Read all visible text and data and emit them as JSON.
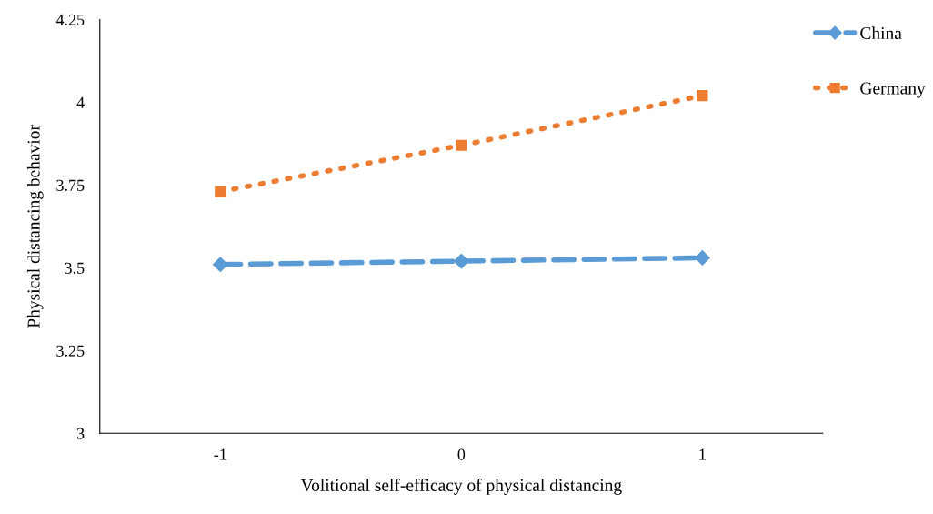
{
  "chart_data": {
    "type": "line",
    "xlabel": "Volitional self-efficacy of physical distancing",
    "ylabel": "Physical distancing behavior",
    "x": [
      -1,
      0,
      1
    ],
    "series": [
      {
        "name": "China",
        "color": "#5b9bd5",
        "values": [
          3.51,
          3.52,
          3.53
        ],
        "marker": "diamond",
        "line_style": "dashed"
      },
      {
        "name": "Germany",
        "color": "#ed7d31",
        "values": [
          3.73,
          3.87,
          4.02
        ],
        "marker": "square",
        "line_style": "dotted"
      }
    ],
    "xlim": [
      -1.5,
      1.5
    ],
    "xticks": [
      -1,
      0,
      1
    ],
    "ylim": [
      3,
      4.25
    ],
    "yticks": [
      3,
      3.25,
      3.5,
      3.75,
      4,
      4.25
    ],
    "grid": false,
    "legend": "top right"
  }
}
